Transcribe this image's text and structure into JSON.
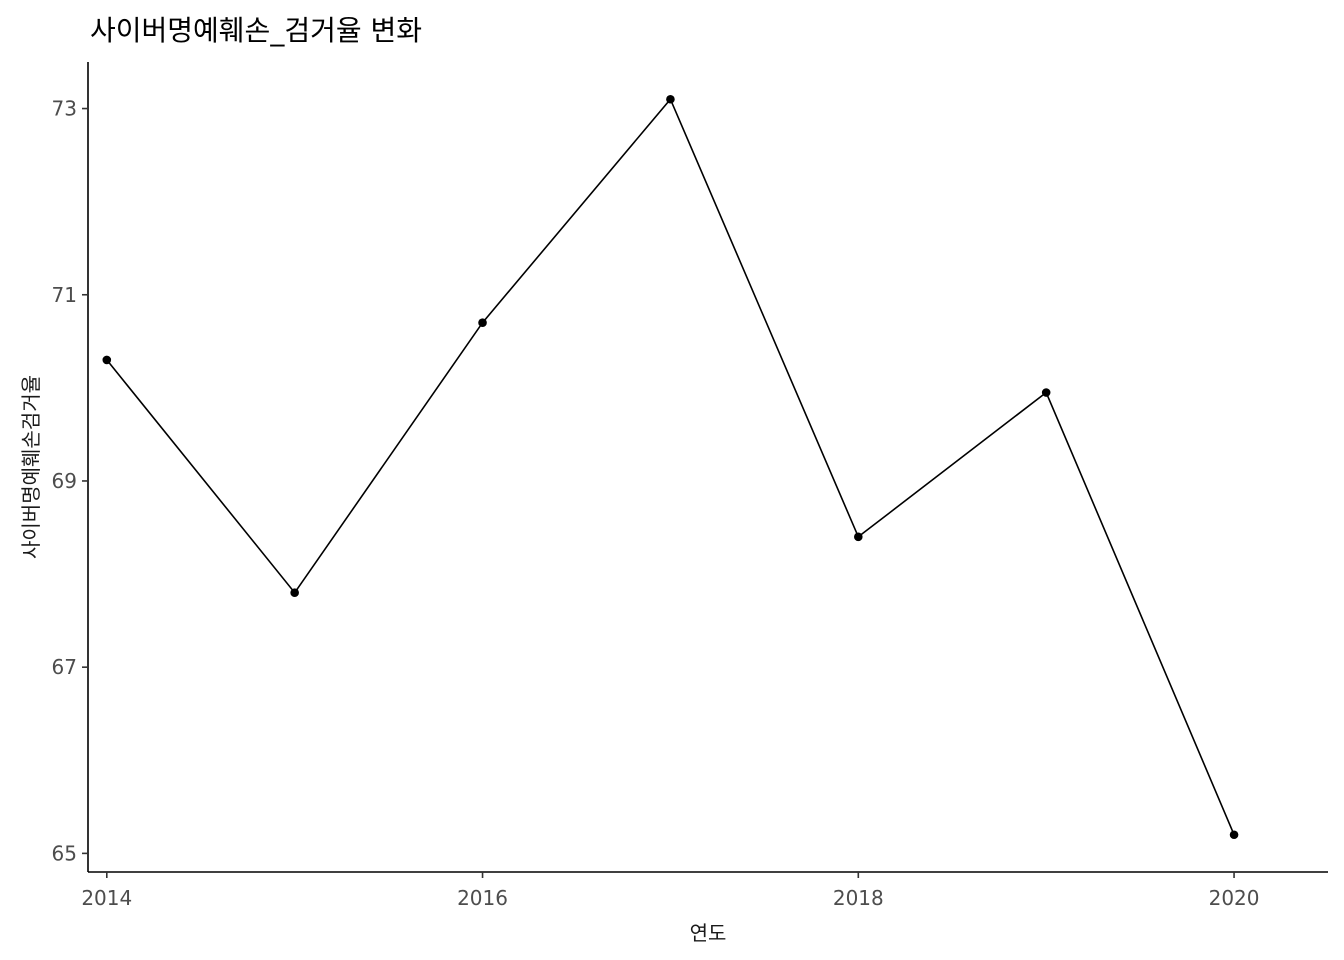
{
  "chart_data": {
    "type": "line",
    "title": "사이버명예훼손_검거율 변화",
    "xlabel": "연도",
    "ylabel": "사이버명예훼손검거율",
    "x": [
      2014,
      2015,
      2016,
      2017,
      2018,
      2019,
      2020
    ],
    "series": [
      {
        "values": [
          70.3,
          67.8,
          70.7,
          73.1,
          68.4,
          69.95,
          65.2
        ]
      }
    ],
    "xlim": [
      2013.9,
      2020.5
    ],
    "ylim": [
      64.8,
      73.5
    ],
    "x_ticks": [
      "2014",
      "2016",
      "2018",
      "2020"
    ],
    "y_ticks": [
      "65",
      "67",
      "69",
      "71",
      "73"
    ],
    "grid": false,
    "theme": "classic",
    "colors": {
      "line": "#000000",
      "point": "#000000",
      "tick_label": "#4d4d4d",
      "axis": "#000000"
    }
  }
}
